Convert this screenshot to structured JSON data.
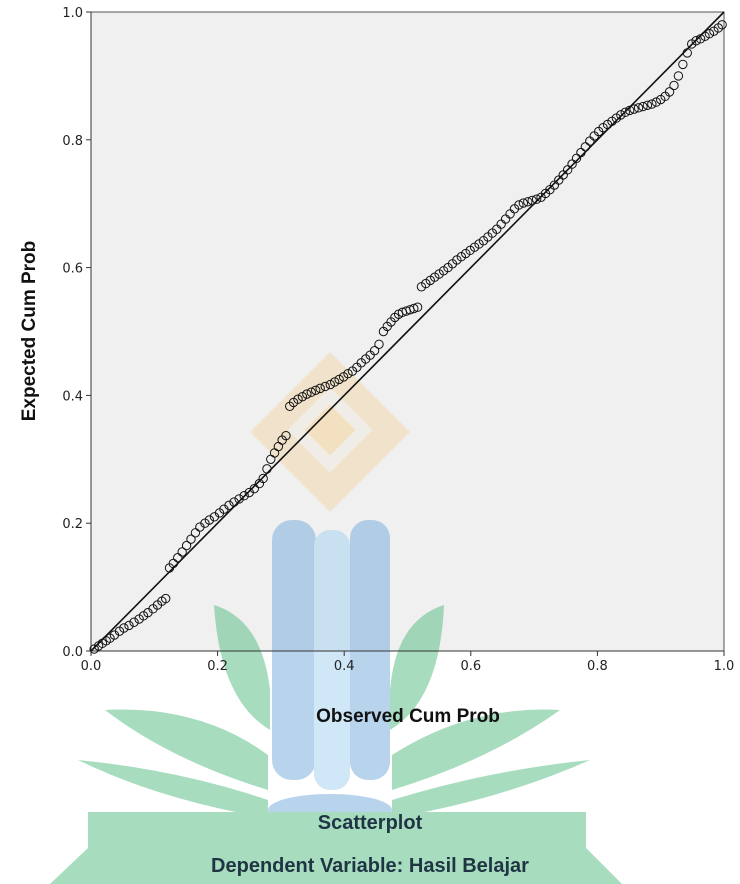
{
  "chart_data": {
    "type": "scatter",
    "title": "",
    "xlabel": "Observed Cum Prob",
    "ylabel": "Expected Cum Prob",
    "xlim": [
      0,
      1
    ],
    "ylim": [
      0,
      1
    ],
    "xticks": [
      "0.0",
      "0.2",
      "0.4",
      "0.6",
      "0.8",
      "1.0"
    ],
    "yticks": [
      "0.0",
      "0.2",
      "0.4",
      "0.6",
      "0.8",
      "1.0"
    ],
    "reference_line": {
      "from": [
        0,
        0
      ],
      "to": [
        1,
        1
      ]
    },
    "grid": false,
    "colors": {
      "plot_bg": "#f0f0f0",
      "marker": "#111111",
      "line": "#111111"
    },
    "points": [
      [
        0.005,
        0.003
      ],
      [
        0.012,
        0.008
      ],
      [
        0.018,
        0.012
      ],
      [
        0.024,
        0.016
      ],
      [
        0.03,
        0.02
      ],
      [
        0.037,
        0.025
      ],
      [
        0.045,
        0.031
      ],
      [
        0.052,
        0.036
      ],
      [
        0.06,
        0.04
      ],
      [
        0.068,
        0.045
      ],
      [
        0.076,
        0.05
      ],
      [
        0.083,
        0.055
      ],
      [
        0.09,
        0.06
      ],
      [
        0.098,
        0.066
      ],
      [
        0.105,
        0.072
      ],
      [
        0.112,
        0.078
      ],
      [
        0.118,
        0.082
      ],
      [
        0.124,
        0.13
      ],
      [
        0.13,
        0.137
      ],
      [
        0.137,
        0.146
      ],
      [
        0.144,
        0.155
      ],
      [
        0.151,
        0.165
      ],
      [
        0.158,
        0.175
      ],
      [
        0.165,
        0.185
      ],
      [
        0.172,
        0.194
      ],
      [
        0.18,
        0.2
      ],
      [
        0.187,
        0.205
      ],
      [
        0.195,
        0.21
      ],
      [
        0.203,
        0.216
      ],
      [
        0.21,
        0.222
      ],
      [
        0.218,
        0.228
      ],
      [
        0.226,
        0.233
      ],
      [
        0.234,
        0.238
      ],
      [
        0.242,
        0.243
      ],
      [
        0.25,
        0.248
      ],
      [
        0.258,
        0.254
      ],
      [
        0.266,
        0.262
      ],
      [
        0.272,
        0.27
      ],
      [
        0.278,
        0.285
      ],
      [
        0.284,
        0.3
      ],
      [
        0.29,
        0.31
      ],
      [
        0.296,
        0.32
      ],
      [
        0.302,
        0.33
      ],
      [
        0.308,
        0.337
      ],
      [
        0.314,
        0.383
      ],
      [
        0.32,
        0.389
      ],
      [
        0.327,
        0.394
      ],
      [
        0.334,
        0.398
      ],
      [
        0.341,
        0.402
      ],
      [
        0.348,
        0.405
      ],
      [
        0.355,
        0.408
      ],
      [
        0.362,
        0.411
      ],
      [
        0.37,
        0.414
      ],
      [
        0.378,
        0.417
      ],
      [
        0.385,
        0.421
      ],
      [
        0.392,
        0.425
      ],
      [
        0.399,
        0.429
      ],
      [
        0.406,
        0.434
      ],
      [
        0.413,
        0.438
      ],
      [
        0.42,
        0.444
      ],
      [
        0.427,
        0.451
      ],
      [
        0.434,
        0.457
      ],
      [
        0.441,
        0.463
      ],
      [
        0.448,
        0.47
      ],
      [
        0.455,
        0.48
      ],
      [
        0.462,
        0.5
      ],
      [
        0.468,
        0.508
      ],
      [
        0.474,
        0.515
      ],
      [
        0.48,
        0.522
      ],
      [
        0.486,
        0.527
      ],
      [
        0.492,
        0.53
      ],
      [
        0.498,
        0.532
      ],
      [
        0.504,
        0.534
      ],
      [
        0.51,
        0.536
      ],
      [
        0.516,
        0.538
      ],
      [
        0.522,
        0.57
      ],
      [
        0.529,
        0.575
      ],
      [
        0.536,
        0.58
      ],
      [
        0.543,
        0.585
      ],
      [
        0.55,
        0.59
      ],
      [
        0.557,
        0.595
      ],
      [
        0.564,
        0.6
      ],
      [
        0.571,
        0.606
      ],
      [
        0.578,
        0.612
      ],
      [
        0.585,
        0.617
      ],
      [
        0.592,
        0.622
      ],
      [
        0.599,
        0.627
      ],
      [
        0.606,
        0.632
      ],
      [
        0.613,
        0.637
      ],
      [
        0.62,
        0.642
      ],
      [
        0.627,
        0.648
      ],
      [
        0.634,
        0.654
      ],
      [
        0.641,
        0.66
      ],
      [
        0.648,
        0.668
      ],
      [
        0.655,
        0.676
      ],
      [
        0.662,
        0.684
      ],
      [
        0.669,
        0.692
      ],
      [
        0.676,
        0.698
      ],
      [
        0.683,
        0.701
      ],
      [
        0.69,
        0.703
      ],
      [
        0.697,
        0.705
      ],
      [
        0.704,
        0.707
      ],
      [
        0.711,
        0.71
      ],
      [
        0.718,
        0.716
      ],
      [
        0.725,
        0.722
      ],
      [
        0.732,
        0.729
      ],
      [
        0.739,
        0.737
      ],
      [
        0.746,
        0.745
      ],
      [
        0.753,
        0.753
      ],
      [
        0.76,
        0.762
      ],
      [
        0.767,
        0.771
      ],
      [
        0.774,
        0.78
      ],
      [
        0.781,
        0.789
      ],
      [
        0.788,
        0.798
      ],
      [
        0.795,
        0.806
      ],
      [
        0.802,
        0.813
      ],
      [
        0.809,
        0.819
      ],
      [
        0.816,
        0.824
      ],
      [
        0.823,
        0.829
      ],
      [
        0.83,
        0.834
      ],
      [
        0.837,
        0.839
      ],
      [
        0.844,
        0.843
      ],
      [
        0.851,
        0.846
      ],
      [
        0.858,
        0.848
      ],
      [
        0.865,
        0.85
      ],
      [
        0.872,
        0.852
      ],
      [
        0.879,
        0.854
      ],
      [
        0.886,
        0.856
      ],
      [
        0.893,
        0.859
      ],
      [
        0.9,
        0.863
      ],
      [
        0.907,
        0.868
      ],
      [
        0.914,
        0.875
      ],
      [
        0.921,
        0.885
      ],
      [
        0.928,
        0.9
      ],
      [
        0.935,
        0.918
      ],
      [
        0.942,
        0.936
      ],
      [
        0.949,
        0.95
      ],
      [
        0.956,
        0.955
      ],
      [
        0.963,
        0.958
      ],
      [
        0.97,
        0.962
      ],
      [
        0.977,
        0.966
      ],
      [
        0.984,
        0.97
      ],
      [
        0.991,
        0.975
      ],
      [
        0.997,
        0.98
      ]
    ]
  },
  "footer": {
    "title": "Scatterplot",
    "subtitle": "Dependent Variable: Hasil Belajar"
  }
}
